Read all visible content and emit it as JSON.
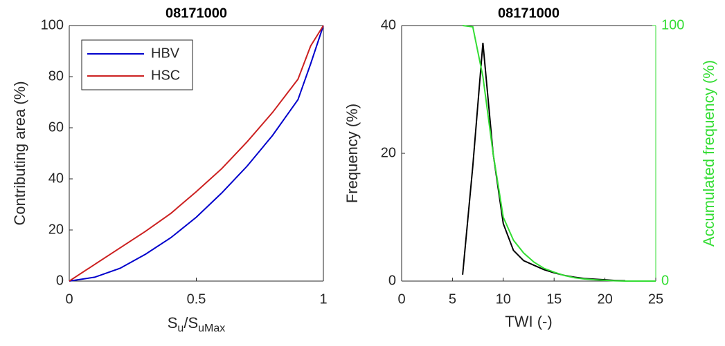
{
  "chart_data": [
    {
      "type": "line",
      "title": "08171000",
      "ylabel": "Contributing area (%)",
      "xlabel": [
        "S",
        "u",
        "/S",
        "uMax"
      ],
      "xlim": [
        0,
        1
      ],
      "xticks": [
        0,
        0.5,
        1
      ],
      "ylim": [
        0,
        100
      ],
      "yticks": [
        0,
        20,
        40,
        60,
        80,
        100
      ],
      "legend": "upper left",
      "x": [
        0,
        0.1,
        0.2,
        0.3,
        0.4,
        0.5,
        0.6,
        0.7,
        0.8,
        0.9,
        0.95,
        1
      ],
      "series": [
        {
          "name": "HBV",
          "color": "#0000cc",
          "values": [
            0,
            1.5,
            5,
            10.5,
            17,
            25,
            34.5,
            45,
            57,
            71,
            85,
            100
          ]
        },
        {
          "name": "HSC",
          "color": "#cc2020",
          "values": [
            0,
            6.5,
            13,
            19.5,
            26.5,
            35,
            44,
            54.5,
            66,
            79,
            92,
            100
          ]
        }
      ]
    },
    {
      "type": "line",
      "title": "08171000",
      "ylabel": "Frequency (%)",
      "y2label": "Accumulated frequency (%)",
      "xlabel": "TWI (-)",
      "xlim": [
        0,
        25
      ],
      "xticks": [
        0,
        5,
        10,
        15,
        20,
        25
      ],
      "ylim": [
        0,
        40
      ],
      "yticks": [
        0,
        20,
        40
      ],
      "y2lim": [
        0,
        100
      ],
      "y2ticks": [
        0,
        100
      ],
      "y2color": "#33dd33",
      "x": [
        6,
        7,
        8,
        9,
        10,
        11,
        12,
        13,
        14,
        15,
        16,
        17,
        18,
        19,
        20,
        21,
        22,
        23,
        24,
        25
      ],
      "series": [
        {
          "name": "Frequency",
          "color": "#000000",
          "values": [
            1,
            18,
            37.3,
            20,
            9,
            4.8,
            3.2,
            2.5,
            1.8,
            1.3,
            0.9,
            0.6,
            0.4,
            0.3,
            0.2,
            0.1,
            0.05,
            null,
            null,
            null
          ]
        },
        {
          "name": "Accumulated frequency",
          "color": "#33dd33",
          "axis": "y2",
          "values": [
            100,
            99.5,
            80,
            50,
            25,
            16,
            11,
            7.5,
            5,
            3.5,
            2.2,
            1.3,
            0.8,
            0.5,
            0.3,
            0.1,
            0,
            0,
            0,
            0
          ]
        }
      ]
    }
  ]
}
